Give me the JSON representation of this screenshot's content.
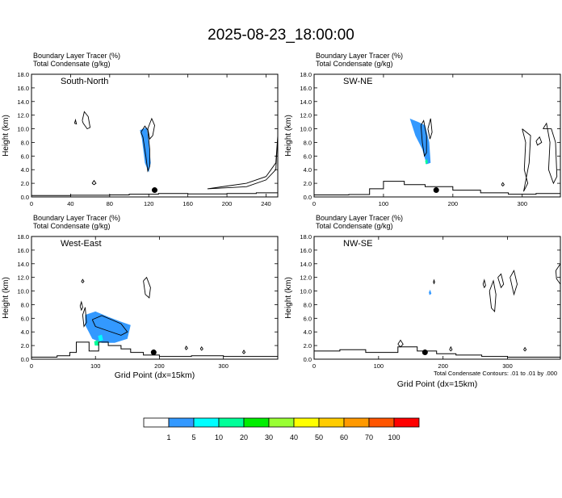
{
  "title": "2025-08-23_18:00:00",
  "panel_label_line1": "Boundary Layer Tracer   (%)",
  "panel_label_line2": "Total Condensate   (g/kg)",
  "ylabel": "Height (km)",
  "xlabel": "Grid Point (dx=15km)",
  "contour_note": "Total Condensate Contours: .01 to .01 by .000",
  "colorbar": {
    "colors": [
      "#ffffff",
      "#3399ff",
      "#00ffff",
      "#00ff99",
      "#00ee00",
      "#99ff33",
      "#ffff00",
      "#ffcc00",
      "#ff9900",
      "#ff5500",
      "#ff0000"
    ],
    "labels": [
      "1",
      "5",
      "10",
      "20",
      "30",
      "40",
      "50",
      "60",
      "70",
      "100"
    ]
  },
  "chart_data": [
    {
      "type": "heatmap",
      "name": "South-North",
      "xlim": [
        0,
        252
      ],
      "ylim": [
        0,
        18
      ],
      "xticks": [
        0,
        40,
        80,
        120,
        160,
        200,
        240
      ],
      "yticks": [
        0,
        2,
        4,
        6,
        8,
        10,
        12,
        14,
        16,
        18
      ],
      "yticklabels": [
        "0.0",
        "2.0",
        "4.0",
        "6.0",
        "8.0",
        "10.0",
        "12.0",
        "14.0",
        "16.0",
        "18.0"
      ],
      "marker": {
        "x": 126,
        "y": 1.0
      },
      "tracer_regions": [
        {
          "level": "1-5",
          "points": [
            [
              111,
              9.8
            ],
            [
              118,
              10.2
            ],
            [
              120,
              8
            ],
            [
              122,
              5
            ],
            [
              120,
              3.6
            ],
            [
              116,
              5
            ],
            [
              113,
              8.5
            ]
          ]
        }
      ],
      "condensate_contours": [
        [
          [
            112,
            9.5
          ],
          [
            116,
            10.4
          ],
          [
            119,
            9.8
          ],
          [
            121,
            7
          ],
          [
            121,
            4.5
          ],
          [
            119,
            3.8
          ],
          [
            117,
            6
          ],
          [
            114,
            8.8
          ],
          [
            112,
            9.5
          ]
        ],
        [
          [
            119,
            10
          ],
          [
            123,
            11.5
          ],
          [
            126,
            10.5
          ],
          [
            124,
            9
          ],
          [
            121,
            8.5
          ],
          [
            119,
            10
          ]
        ],
        [
          [
            52,
            11.2
          ],
          [
            54,
            12.5
          ],
          [
            58,
            11.8
          ],
          [
            60,
            10.2
          ],
          [
            57,
            10
          ],
          [
            53,
            10.8
          ],
          [
            52,
            11.2
          ]
        ],
        [
          [
            44,
            10.8
          ],
          [
            45,
            11.3
          ],
          [
            46,
            10.7
          ],
          [
            44,
            10.8
          ]
        ],
        [
          [
            62,
            2.0
          ],
          [
            64,
            2.4
          ],
          [
            66,
            2.0
          ],
          [
            64,
            1.8
          ],
          [
            62,
            2.0
          ]
        ],
        [
          [
            180,
            1.2
          ],
          [
            220,
            1.5
          ],
          [
            240,
            2.5
          ],
          [
            250,
            4
          ],
          [
            252,
            9
          ],
          [
            250,
            5
          ],
          [
            240,
            3
          ],
          [
            220,
            2
          ],
          [
            200,
            1.6
          ],
          [
            180,
            1.2
          ]
        ]
      ],
      "terrain": [
        [
          0,
          0.2
        ],
        [
          40,
          0.25
        ],
        [
          80,
          0.3
        ],
        [
          100,
          0.4
        ],
        [
          130,
          0.5
        ],
        [
          160,
          0.45
        ],
        [
          200,
          0.5
        ],
        [
          230,
          0.6
        ],
        [
          252,
          0.7
        ]
      ]
    },
    {
      "type": "heatmap",
      "name": "SW-NE",
      "xlim": [
        0,
        355
      ],
      "ylim": [
        0,
        18
      ],
      "xticks": [
        0,
        100,
        200,
        300
      ],
      "yticks": [
        0,
        2,
        4,
        6,
        8,
        10,
        12,
        14,
        16,
        18
      ],
      "yticklabels": [
        "0.0",
        "2.0",
        "4.0",
        "6.0",
        "8.0",
        "10.0",
        "12.0",
        "14.0",
        "16.0",
        "18.0"
      ],
      "marker": {
        "x": 176,
        "y": 1.0
      },
      "tracer_regions": [
        {
          "level": "1-5",
          "points": [
            [
              138,
              11.5
            ],
            [
              150,
              11
            ],
            [
              160,
              10.5
            ],
            [
              166,
              8
            ],
            [
              168,
              5
            ],
            [
              162,
              4.8
            ],
            [
              156,
              7
            ],
            [
              146,
              9
            ],
            [
              138,
              11.5
            ]
          ]
        },
        {
          "level": "10-20",
          "points": [
            [
              160,
              5.3
            ],
            [
              163,
              5.6
            ],
            [
              164,
              5.0
            ],
            [
              161,
              4.8
            ]
          ]
        }
      ],
      "condensate_contours": [
        [
          [
            154,
            10.5
          ],
          [
            158,
            11.2
          ],
          [
            162,
            9
          ],
          [
            162,
            6.5
          ],
          [
            159,
            6
          ],
          [
            156,
            8
          ],
          [
            154,
            10.5
          ]
        ],
        [
          [
            164,
            10
          ],
          [
            168,
            11.5
          ],
          [
            170,
            9.5
          ],
          [
            167,
            8.5
          ],
          [
            164,
            10
          ]
        ],
        [
          [
            300,
            10
          ],
          [
            305,
            8
          ],
          [
            303,
            4
          ],
          [
            308,
            2
          ],
          [
            302,
            0.8
          ],
          [
            310,
            5
          ],
          [
            312,
            9
          ],
          [
            300,
            10
          ]
        ],
        [
          [
            320,
            8.2
          ],
          [
            325,
            8.8
          ],
          [
            328,
            8
          ],
          [
            322,
            7.6
          ],
          [
            320,
            8.2
          ]
        ],
        [
          [
            330,
            10
          ],
          [
            335,
            10.8
          ],
          [
            340,
            8
          ],
          [
            338,
            4
          ],
          [
            345,
            2
          ],
          [
            350,
            3
          ],
          [
            348,
            8
          ],
          [
            342,
            10
          ],
          [
            330,
            10
          ]
        ],
        [
          [
            270,
            1.8
          ],
          [
            272,
            2.1
          ],
          [
            274,
            1.8
          ],
          [
            272,
            1.6
          ],
          [
            270,
            1.8
          ]
        ]
      ],
      "terrain": [
        [
          0,
          0.3
        ],
        [
          50,
          0.35
        ],
        [
          80,
          1.2
        ],
        [
          100,
          2.3
        ],
        [
          130,
          1.8
        ],
        [
          160,
          1.5
        ],
        [
          200,
          1.0
        ],
        [
          240,
          0.6
        ],
        [
          280,
          0.4
        ],
        [
          320,
          0.5
        ],
        [
          355,
          0.6
        ]
      ]
    },
    {
      "type": "heatmap",
      "name": "West-East",
      "xlim": [
        0,
        385
      ],
      "ylim": [
        0,
        18
      ],
      "xticks": [
        0,
        100,
        200,
        300
      ],
      "yticks": [
        0,
        2,
        4,
        6,
        8,
        10,
        12,
        14,
        16,
        18
      ],
      "yticklabels": [
        "0.0",
        "2.0",
        "4.0",
        "6.0",
        "8.0",
        "10.0",
        "12.0",
        "14.0",
        "16.0",
        "18.0"
      ],
      "marker": {
        "x": 191,
        "y": 1.0
      },
      "tracer_regions": [
        {
          "level": "1-5",
          "points": [
            [
              84,
              6.5
            ],
            [
              100,
              7
            ],
            [
              120,
              6.2
            ],
            [
              140,
              5.5
            ],
            [
              155,
              5
            ],
            [
              150,
              3
            ],
            [
              130,
              2.4
            ],
            [
              110,
              2.4
            ],
            [
              95,
              3
            ],
            [
              84,
              5
            ]
          ]
        },
        {
          "level": "10-20",
          "points": [
            [
              98,
              2.6
            ],
            [
              104,
              2.8
            ],
            [
              106,
              2.0
            ],
            [
              99,
              2.0
            ]
          ]
        },
        {
          "level": "5-10",
          "points": [
            [
              104,
              3.4
            ],
            [
              110,
              3.6
            ],
            [
              112,
              2.8
            ],
            [
              106,
              2.6
            ]
          ]
        }
      ],
      "condensate_contours": [
        [
          [
            80,
            6.5
          ],
          [
            84,
            7.6
          ],
          [
            86,
            5.4
          ],
          [
            82,
            4.8
          ],
          [
            80,
            6.5
          ]
        ],
        [
          [
            95,
            5.8
          ],
          [
            110,
            6.4
          ],
          [
            125,
            5.8
          ],
          [
            140,
            5.2
          ],
          [
            150,
            4
          ],
          [
            140,
            3.5
          ],
          [
            118,
            4.2
          ],
          [
            100,
            4.8
          ],
          [
            95,
            5.8
          ]
        ],
        [
          [
            175,
            11.5
          ],
          [
            180,
            12
          ],
          [
            186,
            10.5
          ],
          [
            184,
            9
          ],
          [
            178,
            9.5
          ],
          [
            175,
            11.5
          ]
        ],
        [
          [
            76,
            7.8
          ],
          [
            78,
            8.4
          ],
          [
            80,
            7.6
          ],
          [
            78,
            7.2
          ],
          [
            76,
            7.8
          ]
        ],
        [
          [
            78,
            11.4
          ],
          [
            80,
            11.7
          ],
          [
            82,
            11.4
          ],
          [
            80,
            11.2
          ],
          [
            78,
            11.4
          ]
        ],
        [
          [
            240,
            1.6
          ],
          [
            242,
            1.9
          ],
          [
            244,
            1.6
          ],
          [
            242,
            1.4
          ],
          [
            240,
            1.6
          ]
        ],
        [
          [
            264,
            1.5
          ],
          [
            266,
            1.8
          ],
          [
            268,
            1.5
          ],
          [
            266,
            1.3
          ],
          [
            264,
            1.5
          ]
        ],
        [
          [
            330,
            1.0
          ],
          [
            332,
            1.3
          ],
          [
            334,
            1.0
          ],
          [
            332,
            0.8
          ],
          [
            330,
            1.0
          ]
        ]
      ],
      "terrain": [
        [
          0,
          0.3
        ],
        [
          40,
          0.5
        ],
        [
          60,
          1
        ],
        [
          70,
          2.5
        ],
        [
          90,
          1.2
        ],
        [
          105,
          2.5
        ],
        [
          120,
          2.0
        ],
        [
          140,
          1.5
        ],
        [
          155,
          1.0
        ],
        [
          175,
          0.6
        ],
        [
          200,
          0.4
        ],
        [
          250,
          0.5
        ],
        [
          300,
          0.4
        ],
        [
          385,
          0.3
        ]
      ]
    },
    {
      "type": "heatmap",
      "name": "NW-SE",
      "xlim": [
        0,
        382
      ],
      "ylim": [
        0,
        18
      ],
      "xticks": [
        0,
        100,
        200,
        300
      ],
      "yticks": [
        0,
        2,
        4,
        6,
        8,
        10,
        12,
        14,
        16,
        18
      ],
      "yticklabels": [
        "0.0",
        "2.0",
        "4.0",
        "6.0",
        "8.0",
        "10.0",
        "12.0",
        "14.0",
        "16.0",
        "18.0"
      ],
      "marker": {
        "x": 172,
        "y": 1.0
      },
      "tracer_regions": [
        {
          "level": "1-5",
          "points": [
            [
              178,
              9.8
            ],
            [
              180,
              10.2
            ],
            [
              182,
              9.6
            ],
            [
              179,
              9.4
            ]
          ]
        }
      ],
      "condensate_contours": [
        [
          [
            272,
            10
          ],
          [
            278,
            11.5
          ],
          [
            282,
            9.5
          ],
          [
            280,
            7
          ],
          [
            275,
            7.5
          ],
          [
            272,
            10
          ]
        ],
        [
          [
            262,
            11
          ],
          [
            264,
            11.6
          ],
          [
            266,
            10.8
          ],
          [
            264,
            10.5
          ],
          [
            262,
            11
          ]
        ],
        [
          [
            285,
            12
          ],
          [
            290,
            12.5
          ],
          [
            294,
            11
          ],
          [
            290,
            10.5
          ],
          [
            285,
            12
          ]
        ],
        [
          [
            304,
            12
          ],
          [
            310,
            13
          ],
          [
            315,
            11
          ],
          [
            310,
            9.5
          ],
          [
            304,
            12
          ]
        ],
        [
          [
            375,
            13
          ],
          [
            382,
            14
          ],
          [
            382,
            11
          ],
          [
            376,
            11.8
          ],
          [
            375,
            13
          ]
        ],
        [
          [
            130,
            2.2
          ],
          [
            134,
            2.8
          ],
          [
            138,
            2.2
          ],
          [
            134,
            1.8
          ],
          [
            130,
            2.2
          ]
        ],
        [
          [
            210,
            1.4
          ],
          [
            212,
            1.8
          ],
          [
            214,
            1.4
          ],
          [
            212,
            1.2
          ],
          [
            210,
            1.4
          ]
        ],
        [
          [
            325,
            1.4
          ],
          [
            327,
            1.7
          ],
          [
            329,
            1.4
          ],
          [
            327,
            1.2
          ],
          [
            325,
            1.4
          ]
        ],
        [
          [
            185,
            11.3
          ],
          [
            186,
            11.6
          ],
          [
            187,
            11.3
          ],
          [
            186,
            11.1
          ],
          [
            185,
            11.3
          ]
        ]
      ],
      "terrain": [
        [
          0,
          1.2
        ],
        [
          40,
          1.4
        ],
        [
          80,
          1.0
        ],
        [
          130,
          1.8
        ],
        [
          160,
          1.2
        ],
        [
          190,
          0.8
        ],
        [
          220,
          0.6
        ],
        [
          260,
          0.4
        ],
        [
          300,
          0.3
        ],
        [
          382,
          0.3
        ]
      ]
    }
  ]
}
